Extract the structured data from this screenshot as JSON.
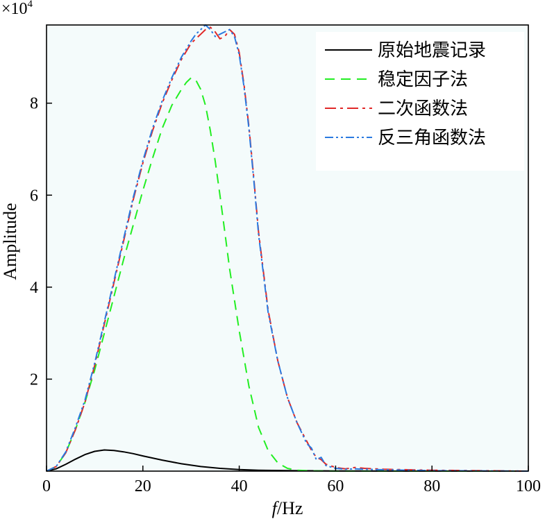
{
  "chart_data": {
    "type": "line",
    "title": "",
    "xlabel": "f/Hz",
    "xlabel_italic_part": "f",
    "xlabel_rest": "/Hz",
    "ylabel": "Amplitude",
    "y_multiplier": "×10⁴",
    "y_multiplier_base": "×10",
    "y_multiplier_exp": "4",
    "xlim": [
      0,
      100
    ],
    "ylim": [
      0,
      9.7
    ],
    "x_ticks": [
      0,
      20,
      40,
      60,
      80,
      100
    ],
    "x_tick_labels": [
      "0",
      "20",
      "40",
      "60",
      "80",
      "100"
    ],
    "y_ticks": [
      2,
      4,
      6,
      8
    ],
    "y_tick_labels": [
      "2",
      "4",
      "6",
      "8"
    ],
    "grid": false,
    "legend_position": "top-right",
    "plot_background": "#f4fbfb",
    "series": [
      {
        "name": "原始地震记录",
        "color": "#000000",
        "dash": "solid",
        "x": [
          0,
          2,
          4,
          6,
          8,
          10,
          12,
          14,
          16,
          18,
          20,
          24,
          28,
          32,
          36,
          40,
          44,
          50,
          60,
          70,
          80,
          100
        ],
        "y": [
          0,
          0.05,
          0.15,
          0.26,
          0.36,
          0.43,
          0.46,
          0.45,
          0.42,
          0.38,
          0.33,
          0.24,
          0.16,
          0.1,
          0.06,
          0.035,
          0.02,
          0.01,
          0.005,
          0.002,
          0.001,
          0
        ]
      },
      {
        "name": "稳定因子法",
        "color": "#22ee22",
        "dash": "dashed",
        "x": [
          0,
          2,
          4,
          6,
          8,
          10,
          12,
          14,
          16,
          18,
          20,
          22,
          24,
          26,
          28,
          29,
          30,
          31,
          32,
          33,
          34,
          35,
          36,
          37,
          38,
          40,
          42,
          44,
          46,
          48,
          50,
          52,
          54,
          56,
          60,
          70,
          80,
          100
        ],
        "y": [
          0,
          0.1,
          0.4,
          0.9,
          1.5,
          2.2,
          3.0,
          3.8,
          4.6,
          5.35,
          6.1,
          6.8,
          7.45,
          7.95,
          8.3,
          8.45,
          8.55,
          8.5,
          8.3,
          7.95,
          7.4,
          6.75,
          6.0,
          5.2,
          4.4,
          3.05,
          1.85,
          0.95,
          0.45,
          0.18,
          0.06,
          0.02,
          0.01,
          0.005,
          0,
          0,
          0,
          0
        ]
      },
      {
        "name": "二次函数法",
        "color": "#e02828",
        "dash": "dashdot",
        "x": [
          0,
          2,
          4,
          6,
          8,
          10,
          12,
          14,
          16,
          18,
          20,
          22,
          24,
          26,
          28,
          30,
          31,
          32,
          33,
          34,
          35,
          36,
          37,
          38,
          39,
          40,
          41,
          42,
          43,
          44,
          46,
          48,
          50,
          52,
          54,
          55,
          56,
          57,
          58,
          60,
          62,
          64,
          66,
          70,
          80,
          100
        ],
        "y": [
          0,
          0.1,
          0.4,
          0.9,
          1.5,
          2.3,
          3.2,
          4.1,
          5.0,
          5.9,
          6.7,
          7.4,
          8.0,
          8.5,
          8.95,
          9.3,
          9.4,
          9.5,
          9.6,
          9.65,
          9.55,
          9.4,
          9.45,
          9.6,
          9.5,
          9.1,
          8.4,
          7.5,
          6.4,
          5.2,
          3.5,
          2.4,
          1.6,
          1.05,
          0.65,
          0.45,
          0.3,
          0.25,
          0.15,
          0.08,
          0.05,
          0.08,
          0.06,
          0.04,
          0.02,
          0
        ]
      },
      {
        "name": "反三角函数法",
        "color": "#2a7ae0",
        "dash": "dashdotdot",
        "x": [
          0,
          2,
          4,
          6,
          8,
          10,
          12,
          14,
          16,
          18,
          20,
          22,
          24,
          26,
          28,
          30,
          31,
          32,
          33,
          34,
          35,
          36,
          37,
          38,
          39,
          40,
          41,
          42,
          43,
          44,
          46,
          48,
          50,
          52,
          54,
          55,
          56,
          57,
          58,
          60,
          62,
          64,
          66,
          70,
          80,
          100
        ],
        "y": [
          0,
          0.1,
          0.42,
          0.95,
          1.55,
          2.35,
          3.25,
          4.15,
          5.05,
          5.95,
          6.75,
          7.45,
          8.05,
          8.55,
          9.0,
          9.35,
          9.5,
          9.6,
          9.7,
          9.6,
          9.45,
          9.5,
          9.55,
          9.6,
          9.45,
          9.05,
          8.35,
          7.45,
          6.35,
          5.15,
          3.45,
          2.4,
          1.6,
          1.05,
          0.6,
          0.5,
          0.25,
          0.3,
          0.12,
          0.06,
          0.04,
          0.05,
          0.04,
          0.03,
          0.01,
          0
        ]
      }
    ]
  }
}
